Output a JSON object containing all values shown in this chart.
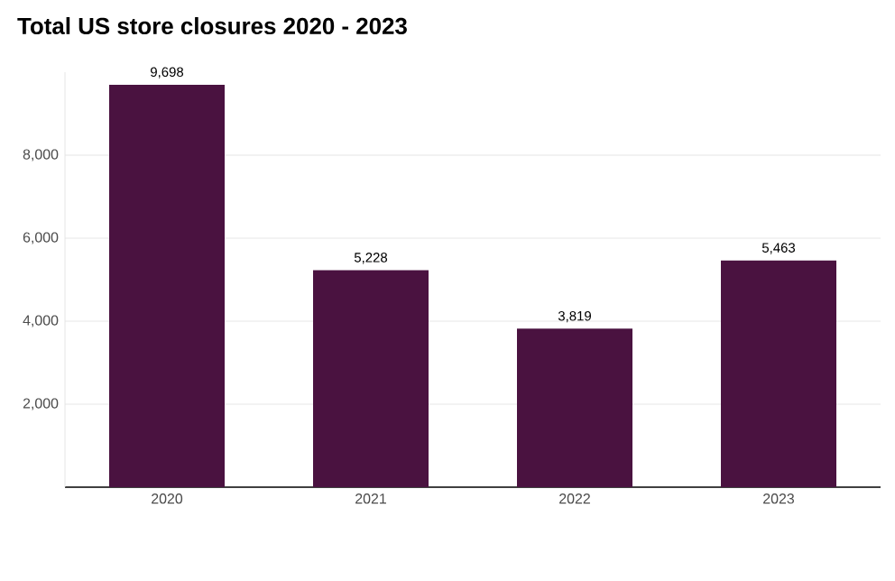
{
  "chart_data": {
    "type": "bar",
    "title": "**Total US store closures 2020 - 2023**",
    "categories": [
      "2020",
      "2021",
      "2022",
      "2023"
    ],
    "values": [
      9698,
      5228,
      3819,
      5463
    ],
    "value_labels": [
      "9,698",
      "5,228",
      "3,819",
      "5,463"
    ],
    "color": "#4a1240",
    "ylim": [
      0,
      10000
    ],
    "yticks": [
      {
        "value": 2000,
        "label": "2,000"
      },
      {
        "value": 4000,
        "label": "4,000"
      },
      {
        "value": 6000,
        "label": "6,000"
      },
      {
        "value": 8000,
        "label": "8,000"
      }
    ],
    "grid": "y"
  }
}
